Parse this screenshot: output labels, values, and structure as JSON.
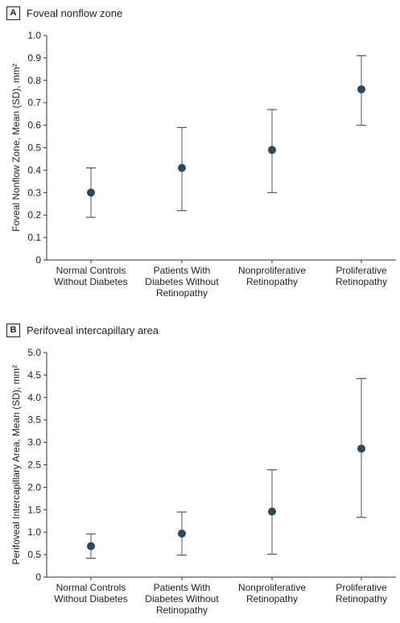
{
  "chart_data": [
    {
      "type": "scatter",
      "panel_letter": "A",
      "title": "Foveal nonflow zone",
      "xlabel": "",
      "ylabel": "Foveal Nonflow Zone, Mean (SD), mm²",
      "ylim": [
        0,
        1.0
      ],
      "yticks": [
        "0",
        "0.1",
        "0.2",
        "0.3",
        "0.4",
        "0.5",
        "0.6",
        "0.7",
        "0.8",
        "0.9",
        "1.0"
      ],
      "categories": [
        [
          "Normal Controls",
          "Without Diabetes"
        ],
        [
          "Patients With",
          "Diabetes Without",
          "Retinopathy"
        ],
        [
          "Nonproliferative",
          "Retinopathy"
        ],
        [
          "Proliferative",
          "Retinopathy"
        ]
      ],
      "series": [
        {
          "mean": [
            0.3,
            0.41,
            0.49,
            0.76
          ],
          "lower": [
            0.19,
            0.22,
            0.3,
            0.6
          ],
          "upper": [
            0.41,
            0.59,
            0.67,
            0.91
          ]
        }
      ],
      "grid": false,
      "marker_color": "#2b4a5f"
    },
    {
      "type": "scatter",
      "panel_letter": "B",
      "title": "Perifoveal intercapillary area",
      "xlabel": "",
      "ylabel": "Perifoveal Intercapillary Area, Mean (SD), mm²",
      "ylim": [
        0,
        5.0
      ],
      "yticks": [
        "0",
        "0.5",
        "1.0",
        "1.5",
        "2.0",
        "2.5",
        "3.0",
        "3.5",
        "4.0",
        "4.5",
        "5.0"
      ],
      "categories": [
        [
          "Normal Controls",
          "Without Diabetes"
        ],
        [
          "Patients With",
          "Diabetes Without",
          "Retinopathy"
        ],
        [
          "Nonproliferative",
          "Retinopathy"
        ],
        [
          "Proliferative",
          "Retinopathy"
        ]
      ],
      "series": [
        {
          "mean": [
            0.69,
            0.97,
            1.46,
            2.86
          ],
          "lower": [
            0.42,
            0.49,
            0.51,
            1.33
          ],
          "upper": [
            0.96,
            1.45,
            2.39,
            4.42
          ]
        }
      ],
      "grid": false,
      "marker_color": "#2b4a5f"
    }
  ]
}
